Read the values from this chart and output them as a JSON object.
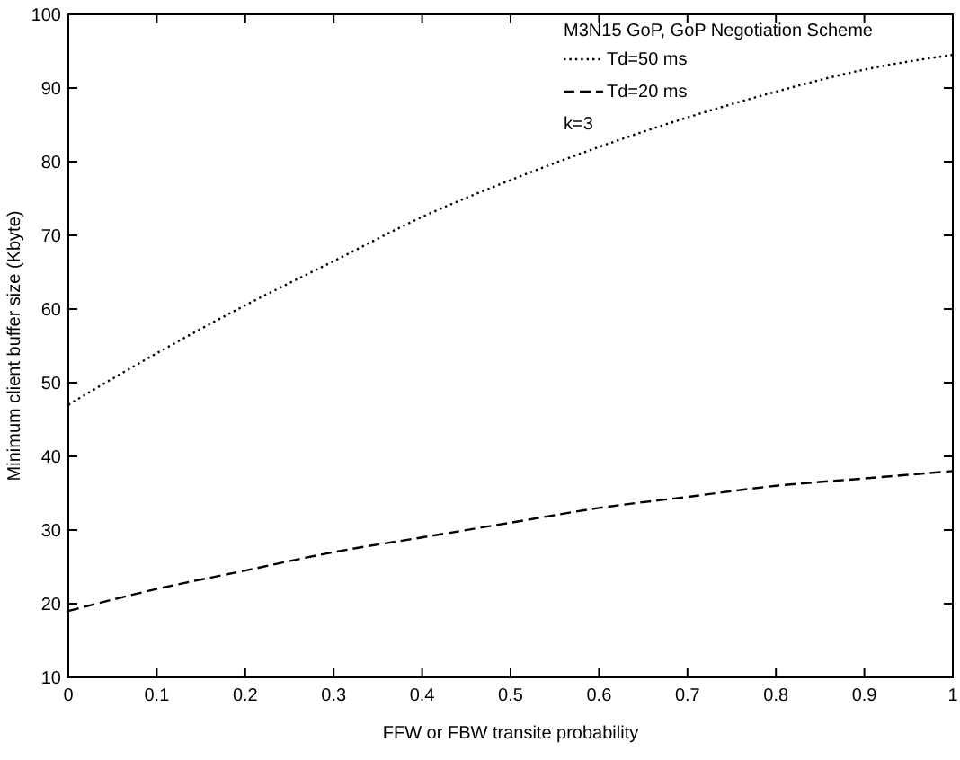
{
  "chart_data": {
    "type": "line",
    "xlabel": "FFW or FBW transite probability",
    "ylabel": "Minimum client buffer size (Kbyte)",
    "annotations": [
      "M3N15 GoP, GoP Negotiation Scheme",
      "k=3"
    ],
    "x": [
      0,
      0.1,
      0.2,
      0.3,
      0.4,
      0.5,
      0.6,
      0.7,
      0.8,
      0.9,
      1
    ],
    "series": [
      {
        "name": "Td=50 ms",
        "color": "#000000",
        "line_style": "dotted",
        "values": [
          47,
          54,
          60.5,
          66.5,
          72.5,
          77.5,
          82,
          86,
          89.5,
          92.5,
          94.5
        ]
      },
      {
        "name": "Td=20 ms",
        "color": "#000000",
        "line_style": "dashed",
        "values": [
          19,
          22,
          24.5,
          27,
          29,
          31,
          33,
          34.5,
          36,
          37,
          38
        ]
      }
    ],
    "xlim": [
      0,
      1
    ],
    "xticks": [
      0,
      0.1,
      0.2,
      0.3,
      0.4,
      0.5,
      0.6,
      0.7,
      0.8,
      0.9,
      1
    ],
    "ylim": [
      10,
      100
    ],
    "yticks": [
      10,
      20,
      30,
      40,
      50,
      60,
      70,
      80,
      90,
      100
    ],
    "legend": "top",
    "grid": false
  }
}
